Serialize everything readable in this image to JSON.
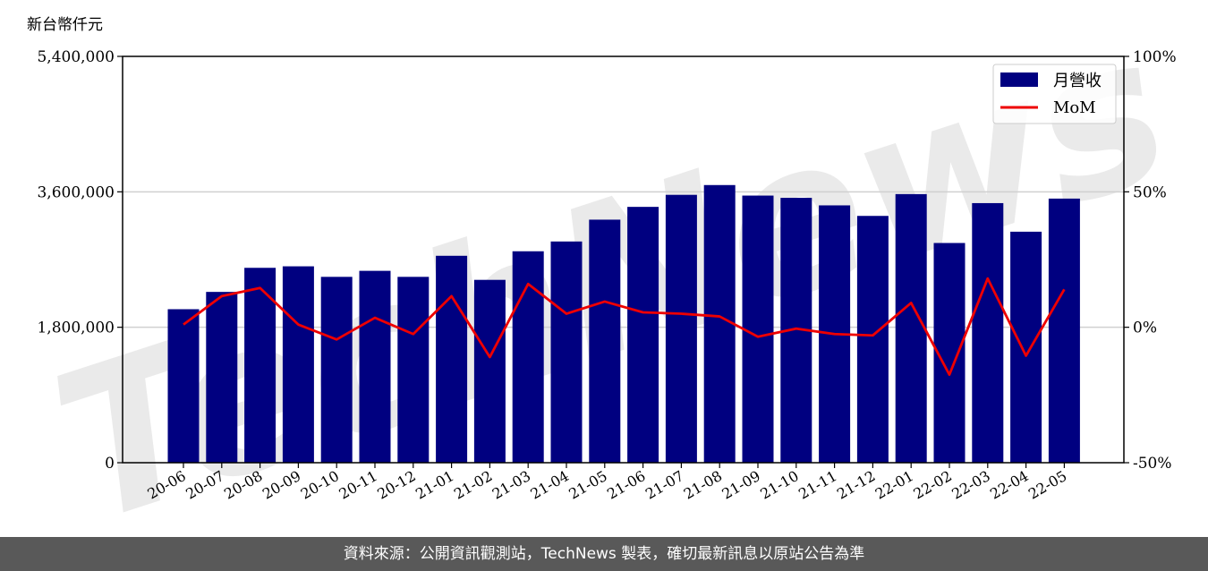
{
  "chart_data": {
    "type": "bar",
    "categories": [
      "20-06",
      "20-07",
      "20-08",
      "20-09",
      "20-10",
      "20-11",
      "20-12",
      "21-01",
      "21-02",
      "21-03",
      "21-04",
      "21-05",
      "21-06",
      "21-07",
      "21-08",
      "21-09",
      "21-10",
      "21-11",
      "21-12",
      "22-01",
      "22-02",
      "22-03",
      "22-04",
      "22-05"
    ],
    "series": [
      {
        "name": "月營收",
        "type": "bar",
        "axis": "left",
        "color": "#000080",
        "values": [
          2040000,
          2270000,
          2590000,
          2610000,
          2470000,
          2550000,
          2470000,
          2750000,
          2430000,
          2810000,
          2940000,
          3230000,
          3400000,
          3560000,
          3690000,
          3550000,
          3520000,
          3420000,
          3280000,
          3570000,
          2920000,
          3450000,
          3070000,
          3510000
        ]
      },
      {
        "name": "MoM",
        "type": "line",
        "axis": "right",
        "color": "#ee0000",
        "values": [
          0.01,
          0.115,
          0.145,
          0.01,
          -0.045,
          0.035,
          -0.025,
          0.115,
          -0.11,
          0.16,
          0.05,
          0.095,
          0.055,
          0.05,
          0.04,
          -0.035,
          -0.005,
          -0.025,
          -0.03,
          0.09,
          -0.175,
          0.18,
          -0.105,
          0.14
        ]
      }
    ],
    "left_axis": {
      "unit_label": "新台幣仟元",
      "ylim": [
        0,
        5400000
      ],
      "ticks": [
        0,
        1800000,
        3600000,
        5400000
      ],
      "tick_labels": [
        "0",
        "1,800,000",
        "3,600,000",
        "5,400,000"
      ]
    },
    "right_axis": {
      "ylim": [
        -0.5,
        1.0
      ],
      "ticks": [
        -0.5,
        0,
        0.5,
        1.0
      ],
      "tick_labels": [
        "-50%",
        "0%",
        "50%",
        "100%"
      ]
    },
    "grid": "horizontal",
    "legend": {
      "position": "top-right",
      "entries": [
        "月營收",
        "MoM"
      ]
    },
    "watermark": "TechNews"
  },
  "footer": {
    "source": "資料來源：公開資訊觀測站，TechNews 製表，確切最新訊息以原站公告為準"
  }
}
